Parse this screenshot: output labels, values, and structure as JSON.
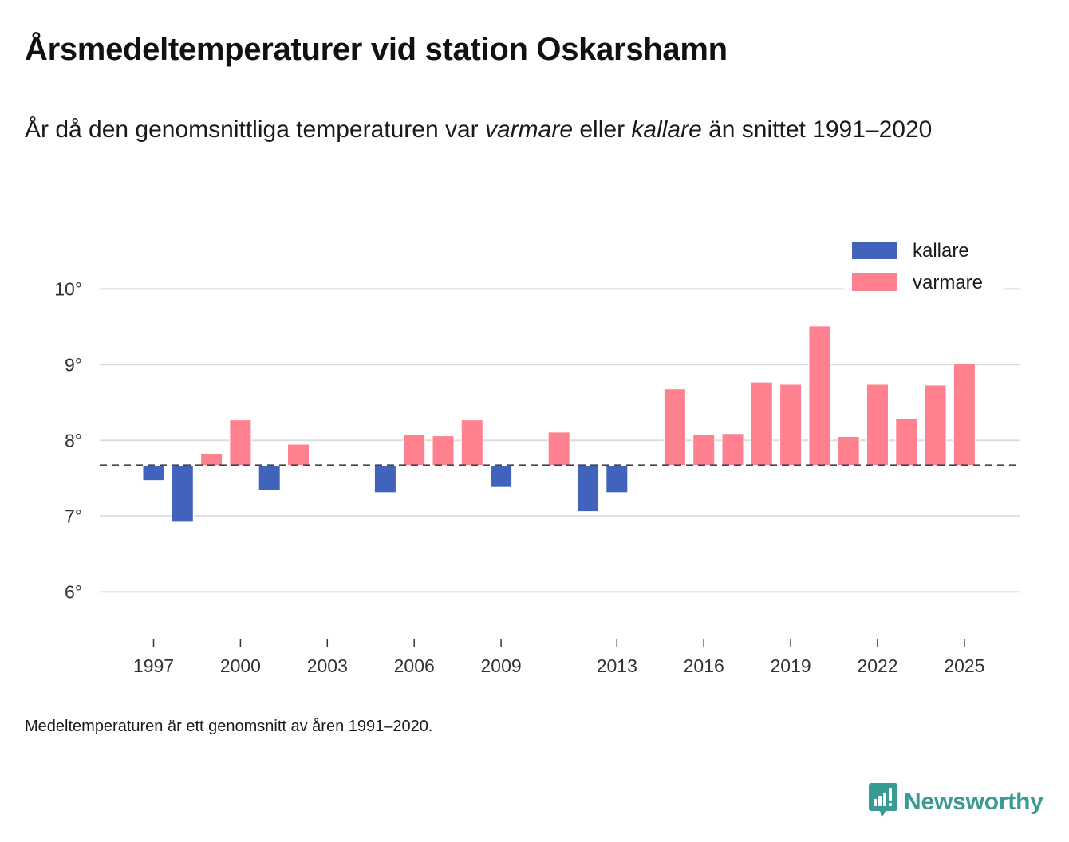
{
  "header": {
    "title": "Årsmedeltemperaturer vid station Oskarshamn",
    "subtitle_parts": [
      "År då den genomsnittliga temperaturen var ",
      "varmare",
      " eller ",
      "kallare",
      " än snittet 1991–2020"
    ]
  },
  "footnote": "Medeltemperaturen är ett genomsnitt av åren 1991–2020.",
  "brand": {
    "name": "Newsworthy",
    "icon": "newsworthy-logo-icon",
    "color": "#3a9b94"
  },
  "chart_data": {
    "type": "bar",
    "title": "Årsmedeltemperaturer vid station Oskarshamn",
    "subtitle": "År då den genomsnittliga temperaturen var varmare eller kallare än snittet 1991–2020",
    "xlabel": "",
    "ylabel": "",
    "baseline": 7.67,
    "baseline_style": "dashed",
    "ylim": [
      5.45,
      10.0
    ],
    "yticks": [
      6,
      7,
      8,
      9,
      10
    ],
    "ytick_labels": [
      "6°",
      "7°",
      "8°",
      "9°",
      "10°"
    ],
    "xlim": [
      1996,
      2027
    ],
    "xticks": [
      1997,
      2000,
      2003,
      2006,
      2009,
      2013,
      2016,
      2019,
      2022,
      2025
    ],
    "xtick_labels": [
      "1997",
      "2000",
      "2003",
      "2006",
      "2009",
      "2013",
      "2016",
      "2019",
      "2022",
      "2025"
    ],
    "grid": "horizontal",
    "legend": {
      "position": "top-right",
      "entries": [
        {
          "label": "kallare",
          "color": "#4163bc"
        },
        {
          "label": "varmare",
          "color": "#ff8190"
        }
      ]
    },
    "colors": {
      "kallare": "#4163bc",
      "varmare": "#ff8190"
    },
    "x": [
      1997,
      1998,
      1999,
      2000,
      2001,
      2002,
      2005,
      2006,
      2007,
      2008,
      2009,
      2011,
      2012,
      2013,
      2015,
      2016,
      2017,
      2018,
      2019,
      2020,
      2021,
      2022,
      2023,
      2024,
      2025
    ],
    "values": [
      7.47,
      6.92,
      7.82,
      8.27,
      7.34,
      7.95,
      7.31,
      8.08,
      8.06,
      8.27,
      7.38,
      8.11,
      7.06,
      7.31,
      8.68,
      8.08,
      8.09,
      8.77,
      8.74,
      9.51,
      8.05,
      8.74,
      8.29,
      8.73,
      9.01
    ]
  }
}
